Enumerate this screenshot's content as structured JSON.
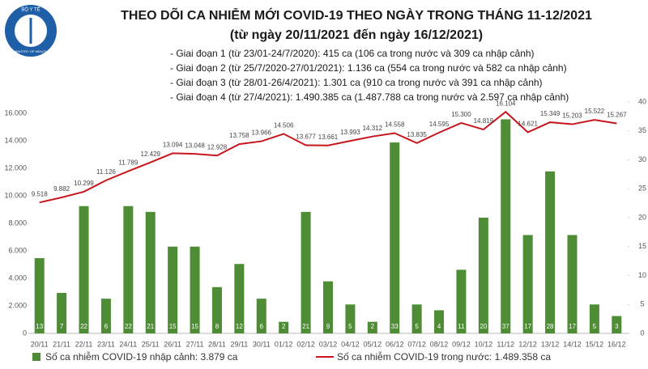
{
  "chart_data": {
    "type": "bar-line",
    "title": "THEO DÕI CA NHIỄM MỚI COVID-19 THEO NGÀY TRONG THÁNG 11-12/2021",
    "subtitle": "(từ ngày 20/11/2021 đến ngày 16/12/2021)",
    "logo_labels": [
      "BỘ Y TẾ",
      "MINISTRY OF HEALTH"
    ],
    "annotations": [
      "- Giai đoạn 1 (từ 23/01-24/7/2020): 415 ca (106 ca trong nước và 309 ca nhập cảnh)",
      "- Giai đoạn 2 (từ 25/7/2020-27/01/2021): 1.136 ca (554 ca trong nước và 582 ca nhập cảnh)",
      "- Giai đoạn 3 (từ 28/01-26/4/2021): 1.301 ca (910 ca trong nước và 391 ca nhập cảnh)",
      "- Giai đoạn 4 (từ 27/4/2021): 1.490.385 ca (1.487.788 ca trong nước và 2.597 ca nhập cảnh)"
    ],
    "categories": [
      "20/11",
      "21/11",
      "22/11",
      "23/11",
      "24/11",
      "25/11",
      "26/11",
      "27/11",
      "28/11",
      "29/11",
      "30/11",
      "01/12",
      "02/12",
      "03/12",
      "04/12",
      "05/12",
      "06/12",
      "07/12",
      "08/12",
      "09/12",
      "10/12",
      "11/12",
      "12/12",
      "13/12",
      "14/12",
      "15/12",
      "16/12"
    ],
    "series": [
      {
        "name": "Số ca nhiễm COVID-19 nhập cảnh: 3.879 ca",
        "type": "bar",
        "axis": "y2",
        "color": "#4f8c36",
        "values": [
          13,
          7,
          22,
          6,
          22,
          21,
          15,
          15,
          8,
          12,
          6,
          2,
          21,
          9,
          5,
          2,
          33,
          5,
          4,
          11,
          20,
          37,
          17,
          28,
          17,
          5,
          3
        ]
      },
      {
        "name": "Số ca nhiễm COVID-19 trong nước: 1.489.358 ca",
        "type": "line",
        "color": "#c8161d",
        "values": [
          9518,
          9882,
          10299,
          11126,
          11789,
          12429,
          13094,
          13048,
          12928,
          13758,
          13966,
          14506,
          13677,
          13661,
          13993,
          14312,
          14558,
          13835,
          14595,
          15300,
          14819,
          16104,
          14621,
          15349,
          15203,
          15522,
          15267
        ],
        "value_labels": [
          "9.518",
          "9.882",
          "10.299",
          "11.126",
          "11.789",
          "12.429",
          "13.094",
          "13.048",
          "12.928",
          "13.758",
          "13.966",
          "14.506",
          "13.677",
          "13.661",
          "13.993",
          "14.312",
          "14.558",
          "13.835",
          "14.595",
          "15.300",
          "14.819",
          "16.104",
          "14.621",
          "15.349",
          "15.203",
          "15.522",
          "15.267"
        ]
      }
    ],
    "ylim": [
      0,
      17000
    ],
    "yticks": [
      0,
      {
        "value": 2000,
        "label": "2.000"
      },
      {
        "value": 4000,
        "label": "4.000"
      },
      {
        "value": 6000,
        "label": "6.000"
      },
      {
        "value": 8000,
        "label": "8.000"
      },
      {
        "value": 10000,
        "label": "10.000"
      },
      {
        "value": 12000,
        "label": "12.000"
      },
      {
        "value": 14000,
        "label": "14.000"
      },
      {
        "value": 16000,
        "label": "16.000"
      }
    ],
    "y2lim": [
      0,
      40
    ],
    "y2ticks": [
      0,
      5,
      10,
      15,
      20,
      25,
      30,
      35,
      40
    ],
    "legend": "bottom"
  }
}
